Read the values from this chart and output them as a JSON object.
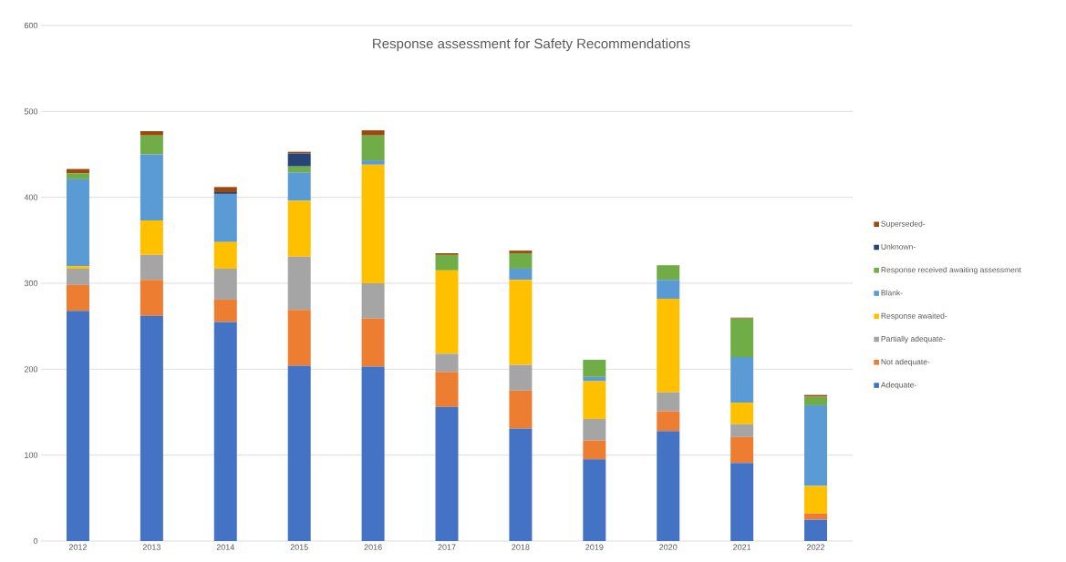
{
  "chart_data": {
    "type": "bar",
    "stacked": true,
    "title": "Response assessment for Safety Recommendations",
    "categories": [
      "2012",
      "2013",
      "2014",
      "2015",
      "2016",
      "2017",
      "2018",
      "2019",
      "2020",
      "2021",
      "2022"
    ],
    "series": [
      {
        "name": "Adequate-",
        "color": "#4472c4",
        "values": [
          268,
          262,
          255,
          204,
          203,
          156,
          131,
          95,
          128,
          91,
          25
        ]
      },
      {
        "name": "Not adequate-",
        "color": "#ed7d31",
        "values": [
          30,
          42,
          26,
          65,
          56,
          41,
          44,
          22,
          23,
          30,
          7
        ]
      },
      {
        "name": "Partially adequate-",
        "color": "#a5a5a5",
        "values": [
          19,
          29,
          36,
          62,
          41,
          21,
          30,
          25,
          22,
          15,
          0
        ]
      },
      {
        "name": "Response awaited-",
        "color": "#ffc000",
        "values": [
          3,
          40,
          31,
          65,
          138,
          97,
          99,
          44,
          109,
          25,
          32
        ]
      },
      {
        "name": "Blank-",
        "color": "#5b9bd5",
        "values": [
          101,
          77,
          56,
          33,
          5,
          0,
          13,
          5,
          22,
          53,
          94
        ]
      },
      {
        "name": "Response received awaiting assessment",
        "color": "#70ad47",
        "values": [
          7,
          22,
          0,
          7,
          29,
          18,
          18,
          20,
          17,
          45,
          10
        ]
      },
      {
        "name": "Unknown-",
        "color": "#264478",
        "values": [
          0,
          0,
          2,
          15,
          0,
          0,
          0,
          0,
          0,
          0,
          0
        ]
      },
      {
        "name": "Superseded-",
        "color": "#9e480e",
        "values": [
          5,
          5,
          6,
          2,
          6,
          2,
          3,
          0,
          0,
          1,
          2
        ]
      }
    ],
    "ylim": [
      0,
      600
    ],
    "yticks": [
      0,
      100,
      200,
      300,
      400,
      500,
      600
    ],
    "grid": "y",
    "legend": "right"
  }
}
